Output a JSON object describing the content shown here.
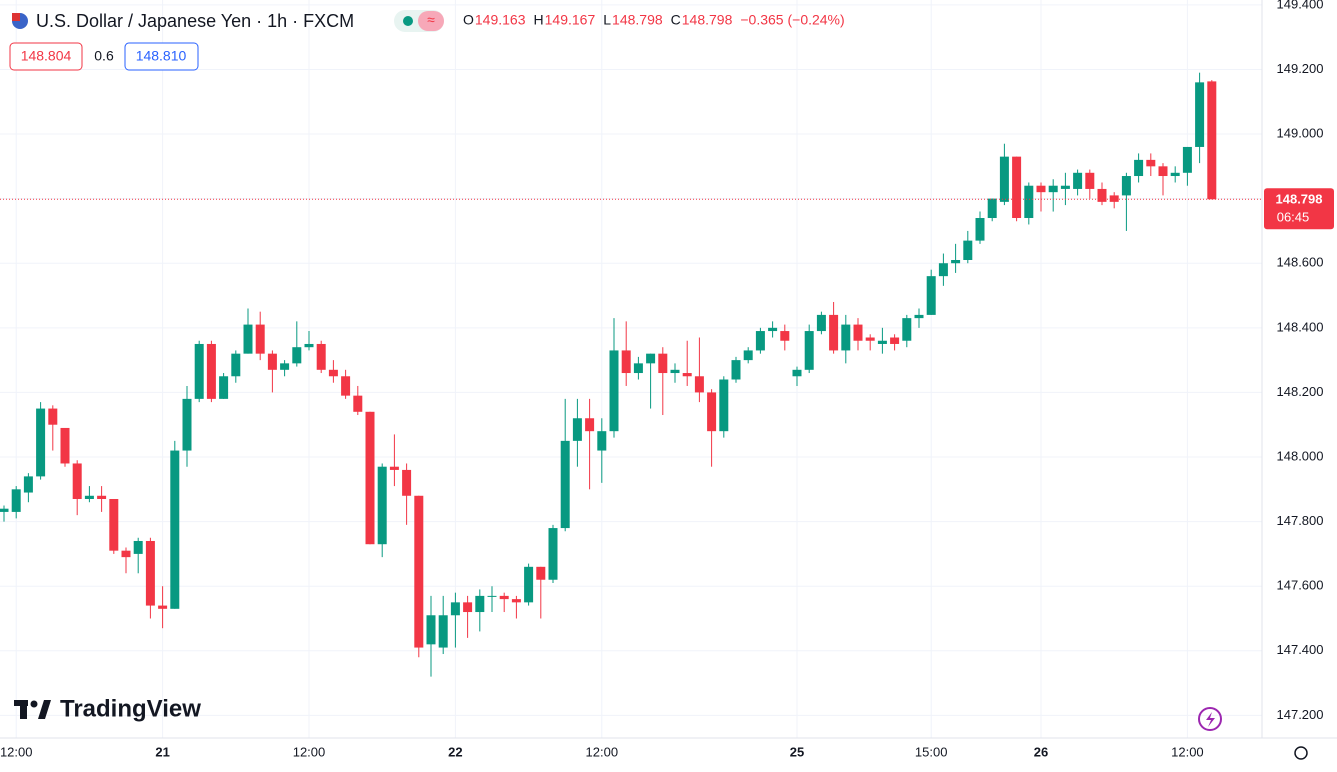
{
  "chart_data": {
    "type": "candlestick",
    "title": "U.S. Dollar / Japanese Yen · 1h · FXCM",
    "ohlc_legend": [
      {
        "label": "O",
        "value": 149.163
      },
      {
        "label": "H",
        "value": 149.167
      },
      {
        "label": "L",
        "value": 148.798
      },
      {
        "label": "C",
        "value": 148.798
      }
    ],
    "change": "−0.365 (−0.24%)",
    "bid": "148.804",
    "spread": "0.6",
    "ask": "148.810",
    "last_price": {
      "value": 148.798,
      "label": "148.798"
    },
    "countdown": "06:45",
    "watermark": "TradingView",
    "up_color": "#089981",
    "down_color": "#f23645",
    "categories": [
      null,
      "12:00",
      null,
      null,
      null,
      null,
      null,
      null,
      null,
      null,
      null,
      null,
      null,
      "21",
      null,
      null,
      null,
      null,
      null,
      null,
      null,
      null,
      null,
      null,
      null,
      "12:00",
      null,
      null,
      null,
      null,
      null,
      null,
      null,
      null,
      null,
      null,
      null,
      "22",
      null,
      null,
      null,
      null,
      null,
      null,
      null,
      null,
      null,
      null,
      null,
      "12:00",
      null,
      null,
      null,
      null,
      null,
      null,
      null,
      null,
      null,
      null,
      null,
      null,
      null,
      null,
      null,
      "25",
      null,
      null,
      null,
      null,
      null,
      null,
      null,
      null,
      null,
      null,
      "15:00",
      null,
      null,
      null,
      null,
      null,
      null,
      null,
      null,
      "26",
      null,
      null,
      null,
      null,
      null,
      null,
      null,
      null,
      null,
      null,
      null,
      "12:00",
      null,
      null
    ],
    "open": [
      147.83,
      147.83,
      147.89,
      147.94,
      148.15,
      148.09,
      147.98,
      147.87,
      147.88,
      147.87,
      147.71,
      147.7,
      147.74,
      147.54,
      147.53,
      148.02,
      148.18,
      148.35,
      148.18,
      148.25,
      148.32,
      148.41,
      148.32,
      148.27,
      148.29,
      148.34,
      148.35,
      148.27,
      148.25,
      148.19,
      148.14,
      147.73,
      147.97,
      147.96,
      147.88,
      147.42,
      147.41,
      147.51,
      147.55,
      147.52,
      147.57,
      147.57,
      147.56,
      147.55,
      147.66,
      147.62,
      147.78,
      148.05,
      148.12,
      148.02,
      148.08,
      148.33,
      148.26,
      148.29,
      148.32,
      148.26,
      148.26,
      148.25,
      148.2,
      148.08,
      148.24,
      148.3,
      148.33,
      148.39,
      148.39,
      148.25,
      148.27,
      148.39,
      148.44,
      148.33,
      148.41,
      148.37,
      148.35,
      148.37,
      148.36,
      148.43,
      148.44,
      148.56,
      148.6,
      148.61,
      148.67,
      148.74,
      148.79,
      148.93,
      148.74,
      148.84,
      148.82,
      148.83,
      148.83,
      148.88,
      148.83,
      148.81,
      148.81,
      148.87,
      148.92,
      148.9,
      148.87,
      148.88,
      148.96,
      149.163
    ],
    "high": [
      147.85,
      147.91,
      147.95,
      148.17,
      148.16,
      148.09,
      147.99,
      147.91,
      147.91,
      147.87,
      147.72,
      147.75,
      147.75,
      147.6,
      148.05,
      148.22,
      148.36,
      148.36,
      148.26,
      148.33,
      148.46,
      148.45,
      148.33,
      148.3,
      148.42,
      148.39,
      148.36,
      148.3,
      148.27,
      148.22,
      148.14,
      147.98,
      148.07,
      147.98,
      147.88,
      147.57,
      147.57,
      147.58,
      147.57,
      147.59,
      147.6,
      147.58,
      147.57,
      147.67,
      147.66,
      147.79,
      148.18,
      148.18,
      148.18,
      148.12,
      148.43,
      148.42,
      148.31,
      148.32,
      148.34,
      148.29,
      148.36,
      148.37,
      148.21,
      148.25,
      148.31,
      148.34,
      148.4,
      148.42,
      148.41,
      148.28,
      148.41,
      148.45,
      148.48,
      148.44,
      148.43,
      148.38,
      148.4,
      148.38,
      148.44,
      148.46,
      148.58,
      148.63,
      148.66,
      148.7,
      148.76,
      148.8,
      148.97,
      148.93,
      148.85,
      148.85,
      148.86,
      148.88,
      148.89,
      148.89,
      148.85,
      148.82,
      148.88,
      148.94,
      148.94,
      148.91,
      148.9,
      148.96,
      149.19,
      149.167
    ],
    "low": [
      147.8,
      147.81,
      147.86,
      147.93,
      148.02,
      147.97,
      147.82,
      147.86,
      147.83,
      147.7,
      147.64,
      147.64,
      147.5,
      147.47,
      147.53,
      147.97,
      148.17,
      148.17,
      148.18,
      148.23,
      148.32,
      148.3,
      148.2,
      148.25,
      148.28,
      148.33,
      148.26,
      148.23,
      148.18,
      148.13,
      147.73,
      147.69,
      147.91,
      147.79,
      147.38,
      147.32,
      147.39,
      147.41,
      147.44,
      147.46,
      147.52,
      147.52,
      147.5,
      147.54,
      147.5,
      147.61,
      147.77,
      147.97,
      147.9,
      147.92,
      148.06,
      148.22,
      148.24,
      148.15,
      148.13,
      148.23,
      148.22,
      148.17,
      147.97,
      148.06,
      148.23,
      148.29,
      148.32,
      148.37,
      148.33,
      148.22,
      148.26,
      148.38,
      148.32,
      148.29,
      148.33,
      148.33,
      148.32,
      148.33,
      148.34,
      148.4,
      148.44,
      148.53,
      148.57,
      148.6,
      148.66,
      148.73,
      148.78,
      148.73,
      148.72,
      148.76,
      148.76,
      148.78,
      148.81,
      148.8,
      148.78,
      148.77,
      148.7,
      148.85,
      148.87,
      148.81,
      148.85,
      148.84,
      148.91,
      148.798
    ],
    "close": [
      147.84,
      147.9,
      147.94,
      148.15,
      148.1,
      147.98,
      147.87,
      147.88,
      147.87,
      147.71,
      147.69,
      147.74,
      147.54,
      147.53,
      148.02,
      148.18,
      148.35,
      148.18,
      148.25,
      148.32,
      148.41,
      148.32,
      148.27,
      148.29,
      148.34,
      148.35,
      148.27,
      148.25,
      148.19,
      148.14,
      147.73,
      147.97,
      147.96,
      147.88,
      147.41,
      147.51,
      147.51,
      147.55,
      147.52,
      147.57,
      147.57,
      147.56,
      147.55,
      147.66,
      147.62,
      147.78,
      148.05,
      148.12,
      148.08,
      148.08,
      148.33,
      148.26,
      148.29,
      148.32,
      148.26,
      148.27,
      148.25,
      148.2,
      148.08,
      148.24,
      148.3,
      148.33,
      148.39,
      148.4,
      148.36,
      148.27,
      148.39,
      148.44,
      148.33,
      148.41,
      148.36,
      148.36,
      148.36,
      148.35,
      148.43,
      148.44,
      148.56,
      148.6,
      148.61,
      148.67,
      148.74,
      148.8,
      148.93,
      148.74,
      148.84,
      148.82,
      148.84,
      148.84,
      148.88,
      148.83,
      148.79,
      148.79,
      148.87,
      148.92,
      148.9,
      148.87,
      148.88,
      148.96,
      149.16,
      148.798
    ],
    "ylim": [
      147.13,
      149.415
    ],
    "yticks": [
      {
        "value": 147.2,
        "label": "147.200"
      },
      {
        "value": 147.4,
        "label": "147.400"
      },
      {
        "value": 147.6,
        "label": "147.600"
      },
      {
        "value": 147.8,
        "label": "147.800"
      },
      {
        "value": 148.0,
        "label": "148.000"
      },
      {
        "value": 148.2,
        "label": "148.200"
      },
      {
        "value": 148.4,
        "label": "148.400"
      },
      {
        "value": 148.6,
        "label": "148.600"
      },
      {
        "value": 148.8,
        "label": "148.800"
      },
      {
        "value": 149.0,
        "label": "149.000"
      },
      {
        "value": 149.2,
        "label": "149.200"
      },
      {
        "value": 149.4,
        "label": "149.400"
      }
    ],
    "grid": true
  }
}
